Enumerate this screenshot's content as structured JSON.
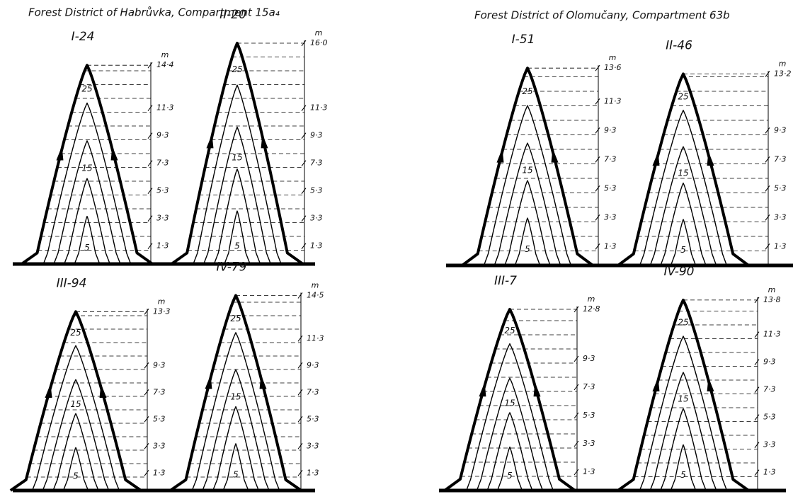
{
  "panels": [
    {
      "title": "Forest District of Habrůvka, Compartment 15a₄",
      "trees": [
        {
          "label": "I-24",
          "unit": "m",
          "heights": [
            "14·4",
            "11·3",
            "9·3",
            "7·3",
            "5·3",
            "3·3",
            "1·3"
          ],
          "contours": [
            "25",
            "15",
            "5"
          ]
        },
        {
          "label": "II-20",
          "unit": "m",
          "heights": [
            "16·0",
            "11·3",
            "9·3",
            "7·3",
            "5·3",
            "3·3",
            "1·3"
          ],
          "contours": [
            "25",
            "15",
            "5"
          ]
        },
        {
          "label": "III-94",
          "unit": "m",
          "heights": [
            "13·3",
            "9·3",
            "7·3",
            "5·3",
            "3·3",
            "1·3"
          ],
          "contours": [
            "25",
            "15",
            "5"
          ]
        },
        {
          "label": "IV-79",
          "unit": "m",
          "heights": [
            "14·5",
            "11·3",
            "9·3",
            "7·3",
            "5·3",
            "3·3",
            "1·3"
          ],
          "contours": [
            "25",
            "15",
            "5"
          ]
        }
      ]
    },
    {
      "title": "Forest District of Olomučany, Compartment 63b",
      "trees": [
        {
          "label": "I-51",
          "unit": "m",
          "heights": [
            "13·6",
            "11·3",
            "9·3",
            "7·3",
            "5·3",
            "3·3",
            "1·3"
          ],
          "contours": [
            "25",
            "15",
            "5"
          ]
        },
        {
          "label": "II-46",
          "unit": "m",
          "heights": [
            "13·2",
            "9·3",
            "7·3",
            "5·3",
            "3·3",
            "1·3"
          ],
          "contours": [
            "25",
            "15",
            "5"
          ]
        },
        {
          "label": "III-7",
          "unit": "m",
          "heights": [
            "12·8",
            "9·3",
            "7·3",
            "5·3",
            "3·3",
            "1·3"
          ],
          "contours": [
            "25",
            "15",
            "5"
          ]
        },
        {
          "label": "IV-90",
          "unit": "m",
          "heights": [
            "13·8",
            "11·3",
            "9·3",
            "7·3",
            "5·3",
            "3·3",
            "1·3"
          ],
          "contours": [
            "25",
            "15",
            "5"
          ]
        }
      ]
    }
  ]
}
